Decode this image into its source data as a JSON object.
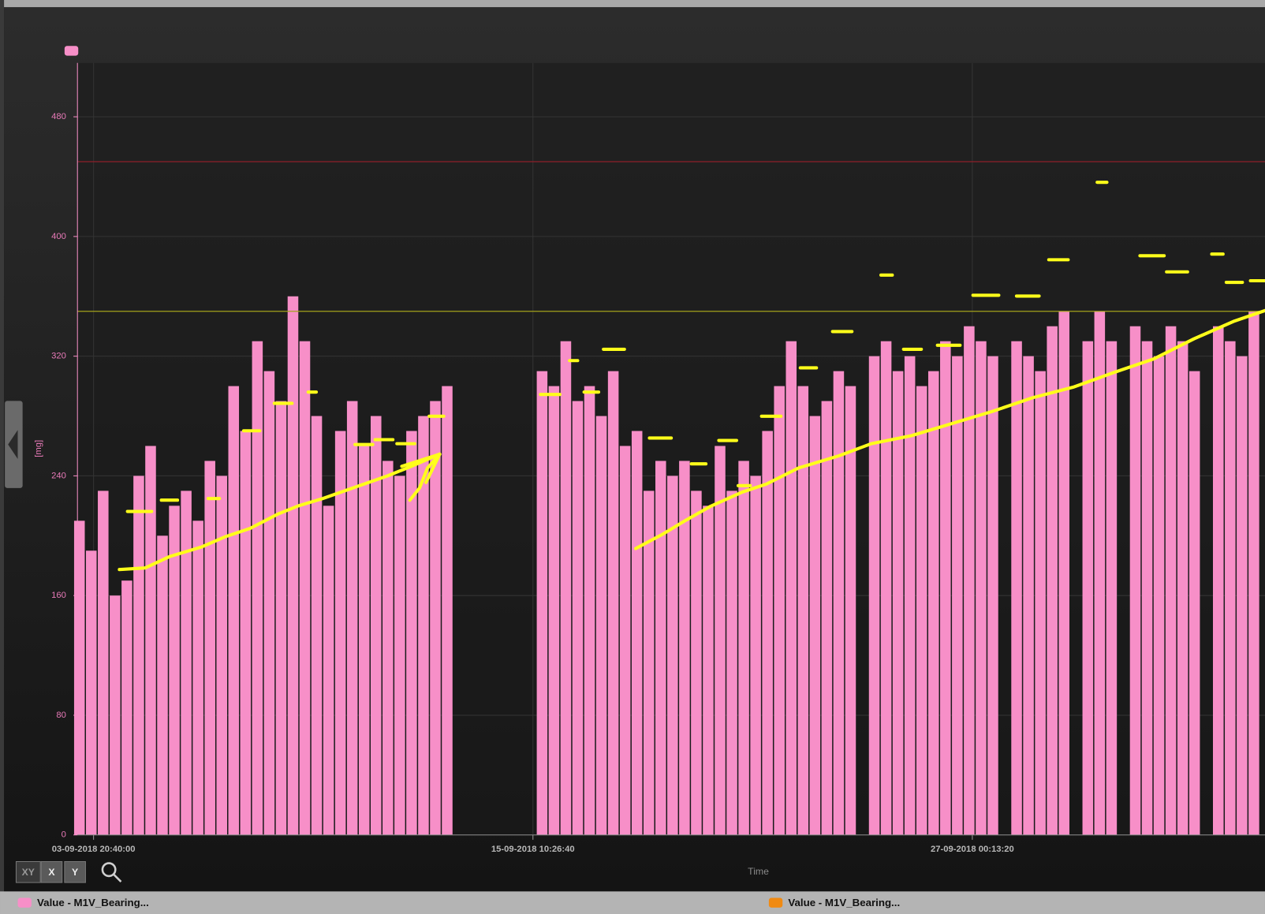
{
  "chart_data": {
    "type": "bar",
    "y_label": "[mg]",
    "x_label": "Time",
    "xlim": [
      1535970500,
      1538673300
    ],
    "xticks": [
      {
        "value": 1536007200,
        "label": "03-09-2018 20:40:00"
      },
      {
        "value": 1537007200,
        "label": "15-09-2018 10:26:40"
      },
      {
        "value": 1538007200,
        "label": "27-09-2018 00:13:20"
      }
    ],
    "ylim": [
      0,
      516
    ],
    "yticks": [
      0,
      80,
      160,
      240,
      320,
      400,
      480
    ],
    "grid": true,
    "ref_lines": [
      {
        "value": 450,
        "color": "#8e1f2a"
      },
      {
        "value": 350,
        "color": "#a3a21c"
      }
    ],
    "x": [
      1535975000,
      1536002000,
      1536029000,
      1536056000,
      1536083000,
      1536110000,
      1536137000,
      1536164000,
      1536191000,
      1536218000,
      1536245000,
      1536272000,
      1536299000,
      1536326000,
      1536353000,
      1536380000,
      1536407000,
      1536434000,
      1536461000,
      1536488000,
      1536515000,
      1536542000,
      1536569000,
      1536596000,
      1536623000,
      1536650000,
      1536677000,
      1536704000,
      1536731000,
      1536758000,
      1536785000,
      1536812000,
      1536839000,
      1536866000,
      1536893000,
      1536920000,
      1536947000,
      1536974000,
      1537001000,
      1537028000,
      1537055000,
      1537082000,
      1537109000,
      1537136000,
      1537163000,
      1537190000,
      1537217000,
      1537244000,
      1537271000,
      1537298000,
      1537325000,
      1537352000,
      1537379000,
      1537406000,
      1537433000,
      1537460000,
      1537487000,
      1537514000,
      1537541000,
      1537568000,
      1537595000,
      1537622000,
      1537649000,
      1537676000,
      1537703000,
      1537730000,
      1537757000,
      1537784000,
      1537811000,
      1537838000,
      1537865000,
      1537892000,
      1537919000,
      1537946000,
      1537973000,
      1538000000,
      1538027000,
      1538054000,
      1538081000,
      1538108000,
      1538135000,
      1538162000,
      1538189000,
      1538216000,
      1538243000,
      1538270000,
      1538297000,
      1538324000,
      1538351000,
      1538378000,
      1538405000,
      1538432000,
      1538459000,
      1538486000,
      1538513000,
      1538540000,
      1538567000,
      1538594000,
      1538621000,
      1538648000
    ],
    "series": [
      {
        "name": "Value - M1V_Bearing...",
        "color": "#f78fc8",
        "values": [
          210,
          190,
          230,
          160,
          170,
          240,
          260,
          200,
          220,
          230,
          210,
          250,
          240,
          300,
          270,
          330,
          310,
          290,
          360,
          330,
          280,
          220,
          270,
          290,
          260,
          280,
          250,
          240,
          270,
          280,
          290,
          300,
          0,
          0,
          0,
          0,
          0,
          0,
          0,
          310,
          300,
          330,
          290,
          300,
          280,
          310,
          260,
          270,
          230,
          250,
          240,
          250,
          230,
          220,
          260,
          230,
          250,
          240,
          270,
          300,
          330,
          300,
          280,
          290,
          310,
          300,
          0,
          320,
          330,
          310,
          320,
          300,
          310,
          330,
          320,
          340,
          330,
          320,
          0,
          330,
          320,
          310,
          340,
          350,
          0,
          330,
          350,
          330,
          0,
          340,
          330,
          320,
          340,
          330,
          310,
          0,
          340,
          330,
          320,
          350
        ]
      },
      {
        "name": "Value - M1V_Bearing...",
        "color": "#f08a12"
      }
    ],
    "toolbar": [
      "XY",
      "X",
      "Y"
    ]
  }
}
